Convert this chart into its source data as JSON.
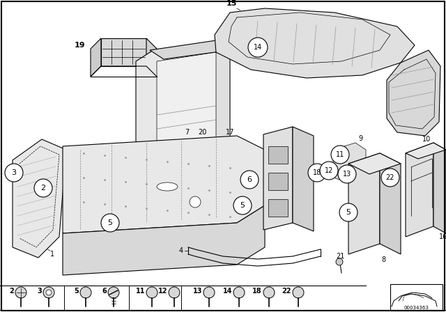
{
  "bg_color": "#ffffff",
  "fig_width": 6.4,
  "fig_height": 4.48,
  "dpi": 100,
  "diagram_note": "00034363",
  "line_color": "#000000",
  "gray_fill": "#d8d8d8",
  "light_fill": "#eeeeee",
  "dot_fill": "#bbbbbb"
}
